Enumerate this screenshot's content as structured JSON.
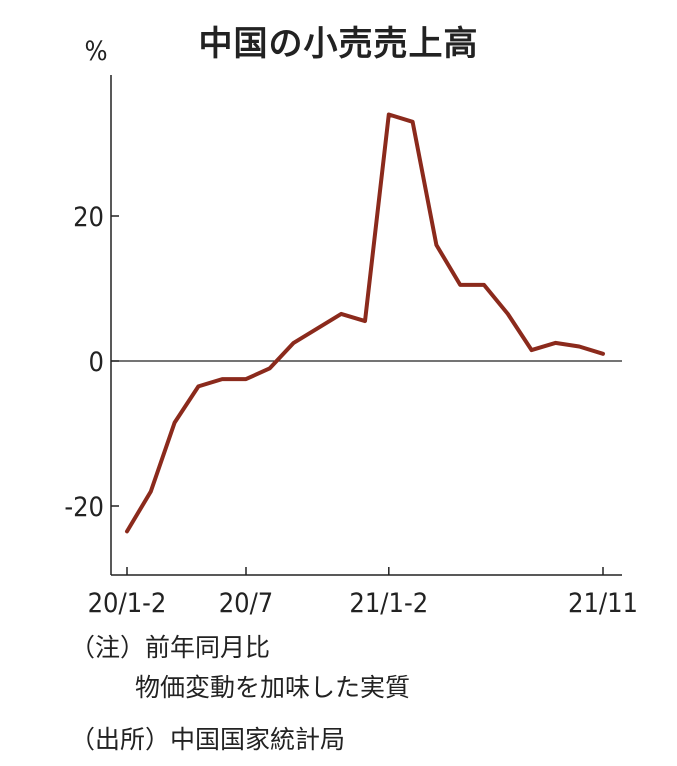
{
  "chart_data": {
    "type": "line",
    "title": "中国の小売売上高",
    "ylabel": "%",
    "xlabel": "",
    "ylim": [
      -30,
      40
    ],
    "yticks": [
      -20,
      0,
      20
    ],
    "ytick_labels": [
      "-20",
      "0",
      "20"
    ],
    "x_tick_labels": [
      {
        "index": 0,
        "label": "20/1-2"
      },
      {
        "index": 5,
        "label": "20/7"
      },
      {
        "index": 11,
        "label": "21/1-2"
      },
      {
        "index": 20,
        "label": "21/11"
      }
    ],
    "x": [
      "20/1-2",
      "20/3",
      "20/4",
      "20/5",
      "20/6",
      "20/7",
      "20/8",
      "20/9",
      "20/10",
      "20/11",
      "20/12",
      "21/1-2",
      "21/3",
      "21/4",
      "21/5",
      "21/6",
      "21/7",
      "21/8",
      "21/9",
      "21/10",
      "21/11"
    ],
    "values": [
      -23.5,
      -18.0,
      -8.5,
      -3.5,
      -2.5,
      -2.5,
      -1.0,
      2.5,
      4.5,
      6.5,
      5.5,
      34.0,
      33.0,
      16.0,
      10.5,
      10.5,
      6.5,
      1.5,
      2.5,
      2.0,
      1.0
    ],
    "line_color": "#8b2a1c",
    "grid": false
  },
  "notes": {
    "line1": "（注）前年同月比",
    "line2": "物価変動を加味した実質",
    "line3": "（出所）中国国家統計局"
  }
}
